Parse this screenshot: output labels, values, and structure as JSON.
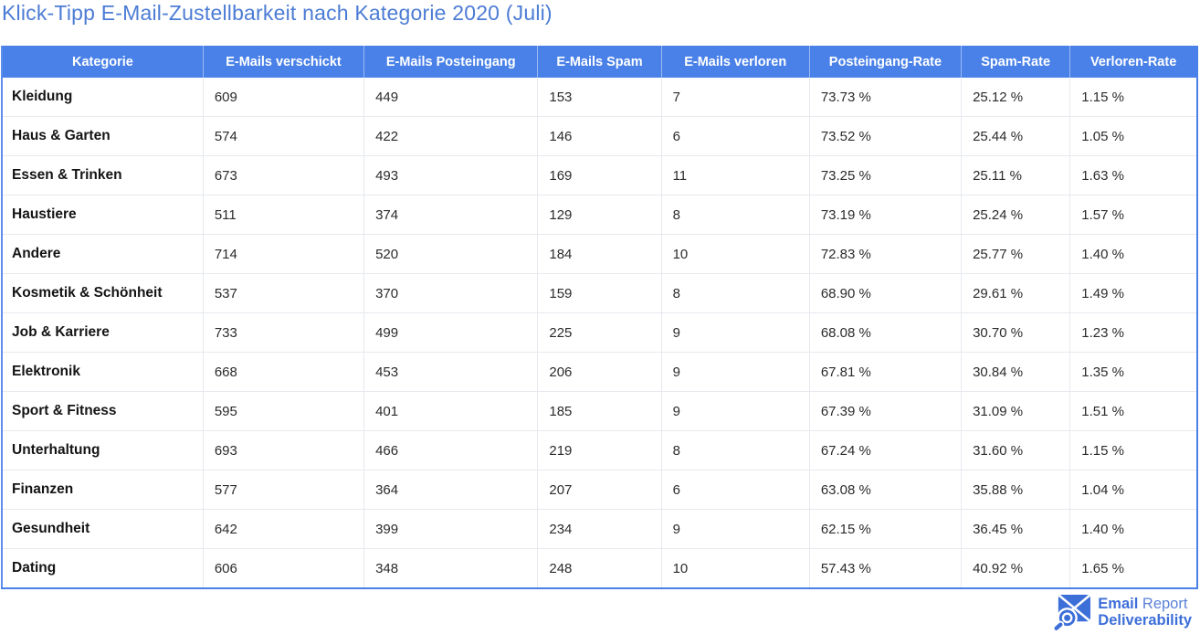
{
  "title": "Klick-Tipp E-Mail-Zustellbarkeit nach Kategorie 2020 (Juli)",
  "colors": {
    "title_blue": "#4c7cd5",
    "header_bg": "#4a81e8",
    "header_text": "#ffffff",
    "body_border": "#e7e9ee",
    "table_outer_border": "#4a81e8",
    "logo_blue": "#3d6fd9"
  },
  "table": {
    "columns": [
      "Kategorie",
      "E-Mails verschickt",
      "E-Mails Posteingang",
      "E-Mails Spam",
      "E-Mails verloren",
      "Posteingang-Rate",
      "Spam-Rate",
      "Verloren-Rate"
    ],
    "rows": [
      [
        "Kleidung",
        "609",
        "449",
        "153",
        "7",
        "73.73 %",
        "25.12 %",
        "1.15 %"
      ],
      [
        "Haus & Garten",
        "574",
        "422",
        "146",
        "6",
        "73.52 %",
        "25.44 %",
        "1.05 %"
      ],
      [
        "Essen & Trinken",
        "673",
        "493",
        "169",
        "11",
        "73.25 %",
        "25.11 %",
        "1.63 %"
      ],
      [
        "Haustiere",
        "511",
        "374",
        "129",
        "8",
        "73.19 %",
        "25.24 %",
        "1.57 %"
      ],
      [
        "Andere",
        "714",
        "520",
        "184",
        "10",
        "72.83 %",
        "25.77 %",
        "1.40 %"
      ],
      [
        "Kosmetik & Schönheit",
        "537",
        "370",
        "159",
        "8",
        "68.90 %",
        "29.61 %",
        "1.49 %"
      ],
      [
        "Job & Karriere",
        "733",
        "499",
        "225",
        "9",
        "68.08 %",
        "30.70 %",
        "1.23 %"
      ],
      [
        "Elektronik",
        "668",
        "453",
        "206",
        "9",
        "67.81 %",
        "30.84 %",
        "1.35 %"
      ],
      [
        "Sport & Fitness",
        "595",
        "401",
        "185",
        "9",
        "67.39 %",
        "31.09 %",
        "1.51 %"
      ],
      [
        "Unterhaltung",
        "693",
        "466",
        "219",
        "8",
        "67.24 %",
        "31.60 %",
        "1.15 %"
      ],
      [
        "Finanzen",
        "577",
        "364",
        "207",
        "6",
        "63.08 %",
        "35.88 %",
        "1.04 %"
      ],
      [
        "Gesundheit",
        "642",
        "399",
        "234",
        "9",
        "62.15 %",
        "36.45 %",
        "1.40 %"
      ],
      [
        "Dating",
        "606",
        "348",
        "248",
        "10",
        "57.43 %",
        "40.92 %",
        "1.65 %"
      ]
    ]
  },
  "chart_data": {
    "type": "table",
    "title": "Klick-Tipp E-Mail-Zustellbarkeit nach Kategorie 2020 (Juli)",
    "columns": [
      "Kategorie",
      "E-Mails verschickt",
      "E-Mails Posteingang",
      "E-Mails Spam",
      "E-Mails verloren",
      "Posteingang-Rate",
      "Spam-Rate",
      "Verloren-Rate"
    ],
    "categories": [
      "Kleidung",
      "Haus & Garten",
      "Essen & Trinken",
      "Haustiere",
      "Andere",
      "Kosmetik & Schönheit",
      "Job & Karriere",
      "Elektronik",
      "Sport & Fitness",
      "Unterhaltung",
      "Finanzen",
      "Gesundheit",
      "Dating"
    ],
    "series": [
      {
        "name": "E-Mails verschickt",
        "values": [
          609,
          574,
          673,
          511,
          714,
          537,
          733,
          668,
          595,
          693,
          577,
          642,
          606
        ]
      },
      {
        "name": "E-Mails Posteingang",
        "values": [
          449,
          422,
          493,
          374,
          520,
          370,
          499,
          453,
          401,
          466,
          364,
          399,
          348
        ]
      },
      {
        "name": "E-Mails Spam",
        "values": [
          153,
          146,
          169,
          129,
          184,
          159,
          225,
          206,
          185,
          219,
          207,
          234,
          248
        ]
      },
      {
        "name": "E-Mails verloren",
        "values": [
          7,
          6,
          11,
          8,
          10,
          8,
          9,
          9,
          9,
          8,
          6,
          9,
          10
        ]
      },
      {
        "name": "Posteingang-Rate (%)",
        "values": [
          73.73,
          73.52,
          73.25,
          73.19,
          72.83,
          68.9,
          68.08,
          67.81,
          67.39,
          67.24,
          63.08,
          62.15,
          57.43
        ]
      },
      {
        "name": "Spam-Rate (%)",
        "values": [
          25.12,
          25.44,
          25.11,
          25.24,
          25.77,
          29.61,
          30.7,
          30.84,
          31.09,
          31.6,
          35.88,
          36.45,
          40.92
        ]
      },
      {
        "name": "Verloren-Rate (%)",
        "values": [
          1.15,
          1.05,
          1.63,
          1.57,
          1.4,
          1.49,
          1.23,
          1.35,
          1.51,
          1.15,
          1.04,
          1.4,
          1.65
        ]
      }
    ]
  },
  "footer": {
    "logo": {
      "icon": "envelope-magnifier-icon",
      "line1_bold": "Email",
      "line1_regular": "Report",
      "line2": "Deliverability"
    }
  }
}
